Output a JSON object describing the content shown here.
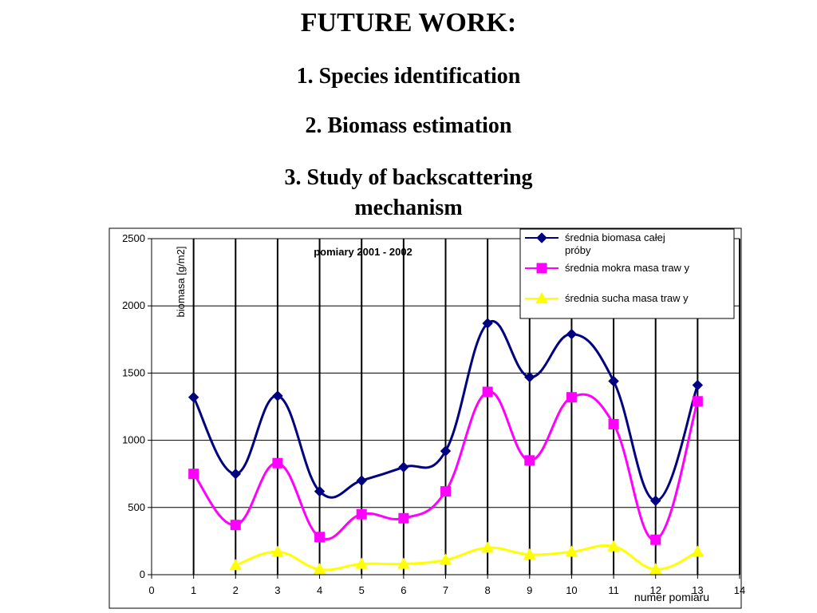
{
  "slide": {
    "title": "FUTURE WORK:",
    "items": [
      "1. Species identification",
      "2. Biomass estimation",
      "3. Study of backscattering",
      "mechanism"
    ]
  },
  "chart_data": {
    "type": "line",
    "title": "pomiary 2001 - 2002",
    "xlabel": "numer pomiaru",
    "ylabel": "biomasa [g/m2]",
    "xlim": [
      0,
      14
    ],
    "ylim": [
      0,
      2500
    ],
    "xticks": [
      0,
      1,
      2,
      3,
      4,
      5,
      6,
      7,
      8,
      9,
      10,
      11,
      12,
      13,
      14
    ],
    "yticks": [
      0,
      500,
      1000,
      1500,
      2000,
      2500
    ],
    "grid": "vertical and horizontal",
    "legend": "top-right",
    "series": [
      {
        "name": "średnia biomasa całej próby",
        "color": "#000080",
        "marker": "diamond",
        "x": [
          1,
          2,
          3,
          4,
          5,
          6,
          7,
          8,
          9,
          10,
          11,
          12,
          13
        ],
        "y": [
          1320,
          750,
          1330,
          620,
          700,
          800,
          920,
          1870,
          1470,
          1790,
          1440,
          550,
          1410
        ]
      },
      {
        "name": "średnia mokra masa traw y",
        "color": "#ff00ff",
        "marker": "square",
        "x": [
          1,
          2,
          3,
          4,
          5,
          6,
          7,
          8,
          9,
          10,
          11,
          12,
          13
        ],
        "y": [
          750,
          370,
          830,
          280,
          450,
          420,
          620,
          1360,
          850,
          1320,
          1120,
          260,
          1290
        ]
      },
      {
        "name": "średnia sucha masa traw y",
        "color": "#ffff00",
        "marker": "triangle",
        "x": [
          2,
          3,
          4,
          5,
          6,
          7,
          8,
          9,
          10,
          11,
          12,
          13
        ],
        "y": [
          70,
          170,
          40,
          80,
          80,
          110,
          200,
          150,
          170,
          210,
          40,
          170
        ]
      }
    ]
  }
}
